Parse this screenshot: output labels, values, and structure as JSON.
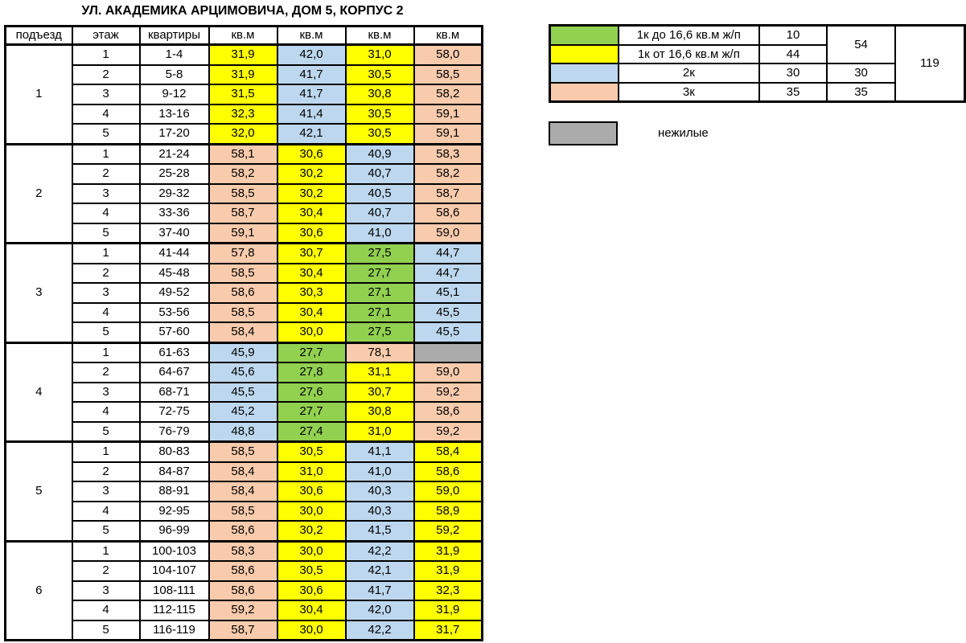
{
  "title": "УЛ. АКАДЕМИКА АРЦИМОВИЧА, ДОМ 5, КОРПУС 2",
  "colors": {
    "yellow": "#FFFF00",
    "blue": "#BDD7EE",
    "peach": "#F8CBAD",
    "green": "#92D050",
    "gray": "#ABABAB"
  },
  "table": {
    "headers": [
      "подъезд",
      "этаж",
      "квартиры",
      "кв.м",
      "кв.м",
      "кв.м",
      "кв.м"
    ],
    "sections": [
      {
        "entrance": "1",
        "rows": [
          {
            "floor": "1",
            "apartments": "1-4",
            "areas": [
              {
                "v": "31,9",
                "c": "yellow"
              },
              {
                "v": "42,0",
                "c": "blue"
              },
              {
                "v": "31,0",
                "c": "yellow"
              },
              {
                "v": "58,0",
                "c": "peach"
              }
            ]
          },
          {
            "floor": "2",
            "apartments": "5-8",
            "areas": [
              {
                "v": "31,9",
                "c": "yellow"
              },
              {
                "v": "41,7",
                "c": "blue"
              },
              {
                "v": "30,5",
                "c": "yellow"
              },
              {
                "v": "58,5",
                "c": "peach"
              }
            ]
          },
          {
            "floor": "3",
            "apartments": "9-12",
            "areas": [
              {
                "v": "31,5",
                "c": "yellow"
              },
              {
                "v": "41,7",
                "c": "blue"
              },
              {
                "v": "30,8",
                "c": "yellow"
              },
              {
                "v": "58,2",
                "c": "peach"
              }
            ]
          },
          {
            "floor": "4",
            "apartments": "13-16",
            "areas": [
              {
                "v": "32,3",
                "c": "yellow"
              },
              {
                "v": "41,4",
                "c": "blue"
              },
              {
                "v": "30,5",
                "c": "yellow"
              },
              {
                "v": "59,1",
                "c": "peach"
              }
            ]
          },
          {
            "floor": "5",
            "apartments": "17-20",
            "areas": [
              {
                "v": "32,0",
                "c": "yellow"
              },
              {
                "v": "42,1",
                "c": "blue"
              },
              {
                "v": "30,5",
                "c": "yellow"
              },
              {
                "v": "59,1",
                "c": "peach"
              }
            ]
          }
        ]
      },
      {
        "entrance": "2",
        "rows": [
          {
            "floor": "1",
            "apartments": "21-24",
            "areas": [
              {
                "v": "58,1",
                "c": "peach"
              },
              {
                "v": "30,6",
                "c": "yellow"
              },
              {
                "v": "40,9",
                "c": "blue"
              },
              {
                "v": "58,3",
                "c": "peach"
              }
            ]
          },
          {
            "floor": "2",
            "apartments": "25-28",
            "areas": [
              {
                "v": "58,2",
                "c": "peach"
              },
              {
                "v": "30,2",
                "c": "yellow"
              },
              {
                "v": "40,7",
                "c": "blue"
              },
              {
                "v": "58,2",
                "c": "peach"
              }
            ]
          },
          {
            "floor": "3",
            "apartments": "29-32",
            "areas": [
              {
                "v": "58,5",
                "c": "peach"
              },
              {
                "v": "30,2",
                "c": "yellow"
              },
              {
                "v": "40,5",
                "c": "blue"
              },
              {
                "v": "58,7",
                "c": "peach"
              }
            ]
          },
          {
            "floor": "4",
            "apartments": "33-36",
            "areas": [
              {
                "v": "58,7",
                "c": "peach"
              },
              {
                "v": "30,4",
                "c": "yellow"
              },
              {
                "v": "40,7",
                "c": "blue"
              },
              {
                "v": "58,6",
                "c": "peach"
              }
            ]
          },
          {
            "floor": "5",
            "apartments": "37-40",
            "areas": [
              {
                "v": "59,1",
                "c": "peach"
              },
              {
                "v": "30,6",
                "c": "yellow"
              },
              {
                "v": "41,0",
                "c": "blue"
              },
              {
                "v": "59,0",
                "c": "peach"
              }
            ]
          }
        ]
      },
      {
        "entrance": "3",
        "rows": [
          {
            "floor": "1",
            "apartments": "41-44",
            "areas": [
              {
                "v": "57,8",
                "c": "peach"
              },
              {
                "v": "30,7",
                "c": "yellow"
              },
              {
                "v": "27,5",
                "c": "green"
              },
              {
                "v": "44,7",
                "c": "blue"
              }
            ]
          },
          {
            "floor": "2",
            "apartments": "45-48",
            "areas": [
              {
                "v": "58,5",
                "c": "peach"
              },
              {
                "v": "30,4",
                "c": "yellow"
              },
              {
                "v": "27,7",
                "c": "green"
              },
              {
                "v": "44,7",
                "c": "blue"
              }
            ]
          },
          {
            "floor": "3",
            "apartments": "49-52",
            "areas": [
              {
                "v": "58,6",
                "c": "peach"
              },
              {
                "v": "30,3",
                "c": "yellow"
              },
              {
                "v": "27,1",
                "c": "green"
              },
              {
                "v": "45,1",
                "c": "blue"
              }
            ]
          },
          {
            "floor": "4",
            "apartments": "53-56",
            "areas": [
              {
                "v": "58,5",
                "c": "peach"
              },
              {
                "v": "30,4",
                "c": "yellow"
              },
              {
                "v": "27,1",
                "c": "green"
              },
              {
                "v": "45,5",
                "c": "blue"
              }
            ]
          },
          {
            "floor": "5",
            "apartments": "57-60",
            "areas": [
              {
                "v": "58,4",
                "c": "peach"
              },
              {
                "v": "30,0",
                "c": "yellow"
              },
              {
                "v": "27,5",
                "c": "green"
              },
              {
                "v": "45,5",
                "c": "blue"
              }
            ]
          }
        ]
      },
      {
        "entrance": "4",
        "rows": [
          {
            "floor": "1",
            "apartments": "61-63",
            "areas": [
              {
                "v": "45,9",
                "c": "blue"
              },
              {
                "v": "27,7",
                "c": "green"
              },
              {
                "v": "78,1",
                "c": "peach"
              },
              {
                "v": "",
                "c": "gray"
              }
            ]
          },
          {
            "floor": "2",
            "apartments": "64-67",
            "areas": [
              {
                "v": "45,6",
                "c": "blue"
              },
              {
                "v": "27,8",
                "c": "green"
              },
              {
                "v": "31,1",
                "c": "yellow"
              },
              {
                "v": "59,0",
                "c": "peach"
              }
            ]
          },
          {
            "floor": "3",
            "apartments": "68-71",
            "areas": [
              {
                "v": "45,5",
                "c": "blue"
              },
              {
                "v": "27,6",
                "c": "green"
              },
              {
                "v": "30,7",
                "c": "yellow"
              },
              {
                "v": "59,2",
                "c": "peach"
              }
            ]
          },
          {
            "floor": "4",
            "apartments": "72-75",
            "areas": [
              {
                "v": "45,2",
                "c": "blue"
              },
              {
                "v": "27,7",
                "c": "green"
              },
              {
                "v": "30,8",
                "c": "yellow"
              },
              {
                "v": "58,6",
                "c": "peach"
              }
            ]
          },
          {
            "floor": "5",
            "apartments": "76-79",
            "areas": [
              {
                "v": "48,8",
                "c": "blue"
              },
              {
                "v": "27,4",
                "c": "green"
              },
              {
                "v": "31,0",
                "c": "yellow"
              },
              {
                "v": "59,2",
                "c": "peach"
              }
            ]
          }
        ]
      },
      {
        "entrance": "5",
        "rows": [
          {
            "floor": "1",
            "apartments": "80-83",
            "areas": [
              {
                "v": "58,5",
                "c": "peach"
              },
              {
                "v": "30,5",
                "c": "yellow"
              },
              {
                "v": "41,1",
                "c": "blue"
              },
              {
                "v": "58,4",
                "c": "yellow"
              }
            ]
          },
          {
            "floor": "2",
            "apartments": "84-87",
            "areas": [
              {
                "v": "58,4",
                "c": "peach"
              },
              {
                "v": "31,0",
                "c": "yellow"
              },
              {
                "v": "41,0",
                "c": "blue"
              },
              {
                "v": "58,6",
                "c": "yellow"
              }
            ]
          },
          {
            "floor": "3",
            "apartments": "88-91",
            "areas": [
              {
                "v": "58,4",
                "c": "peach"
              },
              {
                "v": "30,6",
                "c": "yellow"
              },
              {
                "v": "40,3",
                "c": "blue"
              },
              {
                "v": "59,0",
                "c": "yellow"
              }
            ]
          },
          {
            "floor": "4",
            "apartments": "92-95",
            "areas": [
              {
                "v": "58,5",
                "c": "peach"
              },
              {
                "v": "30,0",
                "c": "yellow"
              },
              {
                "v": "40,3",
                "c": "blue"
              },
              {
                "v": "58,9",
                "c": "yellow"
              }
            ]
          },
          {
            "floor": "5",
            "apartments": "96-99",
            "areas": [
              {
                "v": "58,6",
                "c": "peach"
              },
              {
                "v": "30,2",
                "c": "yellow"
              },
              {
                "v": "41,5",
                "c": "blue"
              },
              {
                "v": "59,2",
                "c": "yellow"
              }
            ]
          }
        ]
      },
      {
        "entrance": "6",
        "rows": [
          {
            "floor": "1",
            "apartments": "100-103",
            "areas": [
              {
                "v": "58,3",
                "c": "peach"
              },
              {
                "v": "30,0",
                "c": "yellow"
              },
              {
                "v": "42,2",
                "c": "blue"
              },
              {
                "v": "31,9",
                "c": "yellow"
              }
            ]
          },
          {
            "floor": "2",
            "apartments": "104-107",
            "areas": [
              {
                "v": "58,6",
                "c": "peach"
              },
              {
                "v": "30,5",
                "c": "yellow"
              },
              {
                "v": "42,1",
                "c": "blue"
              },
              {
                "v": "31,9",
                "c": "yellow"
              }
            ]
          },
          {
            "floor": "3",
            "apartments": "108-111",
            "areas": [
              {
                "v": "58,6",
                "c": "peach"
              },
              {
                "v": "30,6",
                "c": "yellow"
              },
              {
                "v": "41,7",
                "c": "blue"
              },
              {
                "v": "32,3",
                "c": "yellow"
              }
            ]
          },
          {
            "floor": "4",
            "apartments": "112-115",
            "areas": [
              {
                "v": "59,2",
                "c": "peach"
              },
              {
                "v": "30,4",
                "c": "yellow"
              },
              {
                "v": "42,0",
                "c": "blue"
              },
              {
                "v": "31,9",
                "c": "yellow"
              }
            ]
          },
          {
            "floor": "5",
            "apartments": "116-119",
            "areas": [
              {
                "v": "58,7",
                "c": "peach"
              },
              {
                "v": "30,0",
                "c": "yellow"
              },
              {
                "v": "42,2",
                "c": "blue"
              },
              {
                "v": "31,7",
                "c": "yellow"
              }
            ]
          }
        ]
      }
    ]
  },
  "legend": {
    "rows": [
      {
        "color": "green",
        "label": "1к до 16,6 кв.м ж/п",
        "count": "10"
      },
      {
        "color": "yellow",
        "label": "1к от 16,6 кв.м ж/п",
        "count": "44"
      },
      {
        "color": "blue",
        "label": "2к",
        "count": "30"
      },
      {
        "color": "peach",
        "label": "3к",
        "count": "35"
      }
    ],
    "subtotals": [
      {
        "value": "54"
      },
      {
        "value": "30"
      },
      {
        "value": "35"
      }
    ],
    "total": "119",
    "nonresidential": {
      "color": "gray",
      "label": "нежилые"
    }
  }
}
